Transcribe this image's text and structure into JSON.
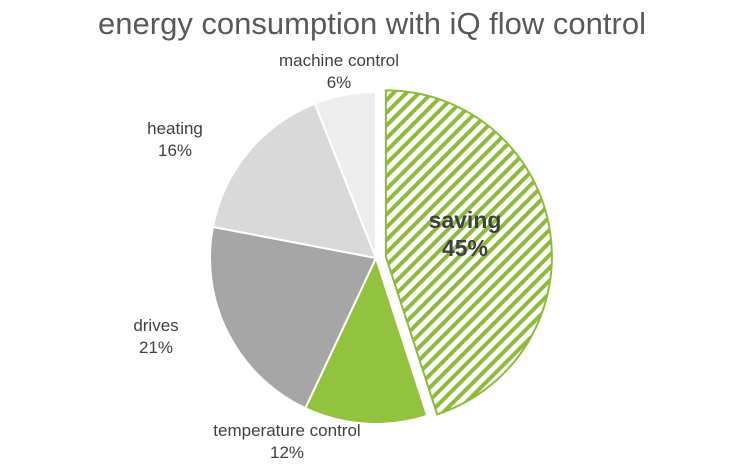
{
  "chart_data": {
    "type": "pie",
    "title": "energy consumption with iQ flow control",
    "slices": [
      {
        "label": "saving",
        "percent_label": "45%",
        "value": 45,
        "color": "#8dbb3c",
        "pattern": "hatched",
        "exploded": true,
        "bold_label": true,
        "label_inside": true
      },
      {
        "label": "temperature control",
        "percent_label": "12%",
        "value": 12,
        "color": "#92c23e"
      },
      {
        "label": "drives",
        "percent_label": "21%",
        "value": 21,
        "color": "#a6a6a6"
      },
      {
        "label": "heating",
        "percent_label": "16%",
        "value": 16,
        "color": "#d9d9d9"
      },
      {
        "label": "machine control",
        "percent_label": "6%",
        "value": 6,
        "color": "#ededed"
      }
    ],
    "legend": "none"
  }
}
